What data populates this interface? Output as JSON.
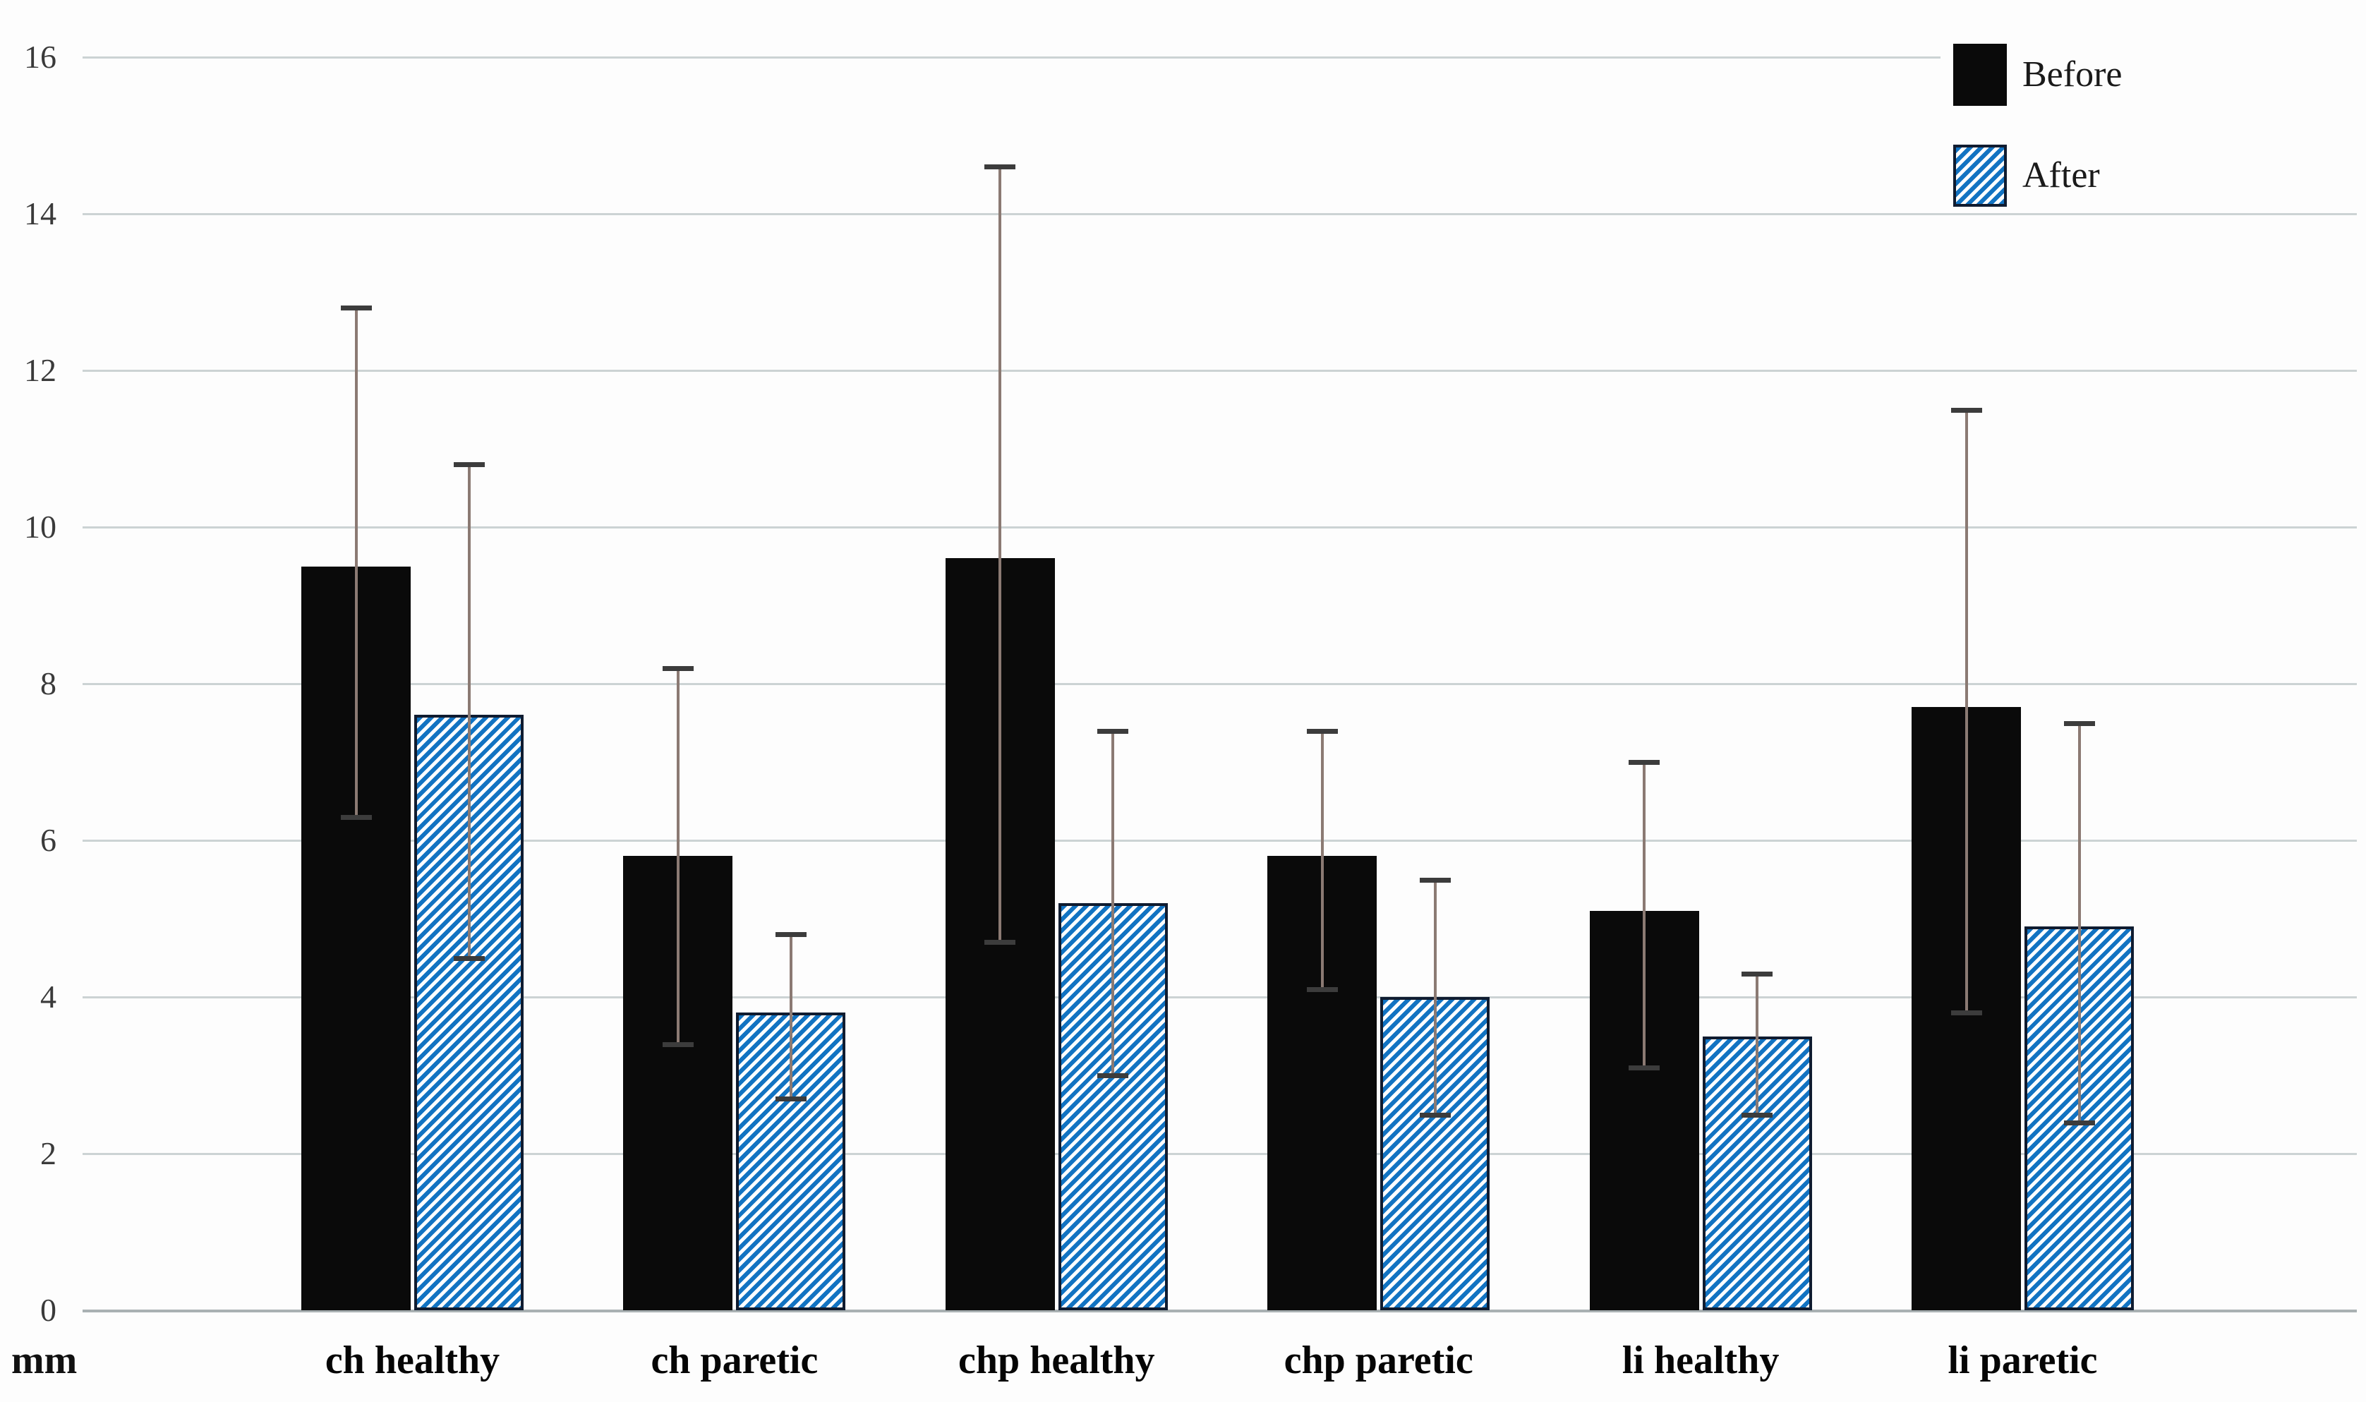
{
  "chart_data": {
    "type": "bar",
    "title": "",
    "xlabel": "",
    "ylabel": "mm",
    "unit_label": "mm",
    "ylim": [
      0,
      16
    ],
    "yticks": [
      0,
      2,
      4,
      6,
      8,
      10,
      12,
      14,
      16
    ],
    "grid": true,
    "legend_position": "top-right",
    "categories": [
      "ch healthy",
      "ch paretic",
      "chp healthy",
      "chp paretic",
      "li healthy",
      "li paretic"
    ],
    "series": [
      {
        "name": "Before",
        "style": "solid-black",
        "values": [
          9.5,
          5.8,
          9.6,
          5.8,
          5.1,
          7.7
        ],
        "error_low": [
          6.3,
          3.4,
          4.7,
          4.1,
          3.1,
          3.8
        ],
        "error_high": [
          12.8,
          8.2,
          14.6,
          7.4,
          7.0,
          11.5
        ]
      },
      {
        "name": "After",
        "style": "blue-hatch",
        "values": [
          7.6,
          3.8,
          5.2,
          4.0,
          3.5,
          4.9
        ],
        "error_low": [
          4.5,
          2.7,
          3.0,
          2.5,
          2.5,
          2.4
        ],
        "error_high": [
          10.8,
          4.8,
          7.4,
          5.5,
          4.3,
          7.5
        ]
      }
    ],
    "colors": {
      "before_fill": "#0a0a0a",
      "after_stripe": "#1273c2",
      "after_border": "#101c30",
      "error_line": "#8b7a73",
      "error_cap": "#3c3c3c",
      "gridline": "#ccd3d4",
      "axis_line": "#a9b1b3"
    }
  }
}
